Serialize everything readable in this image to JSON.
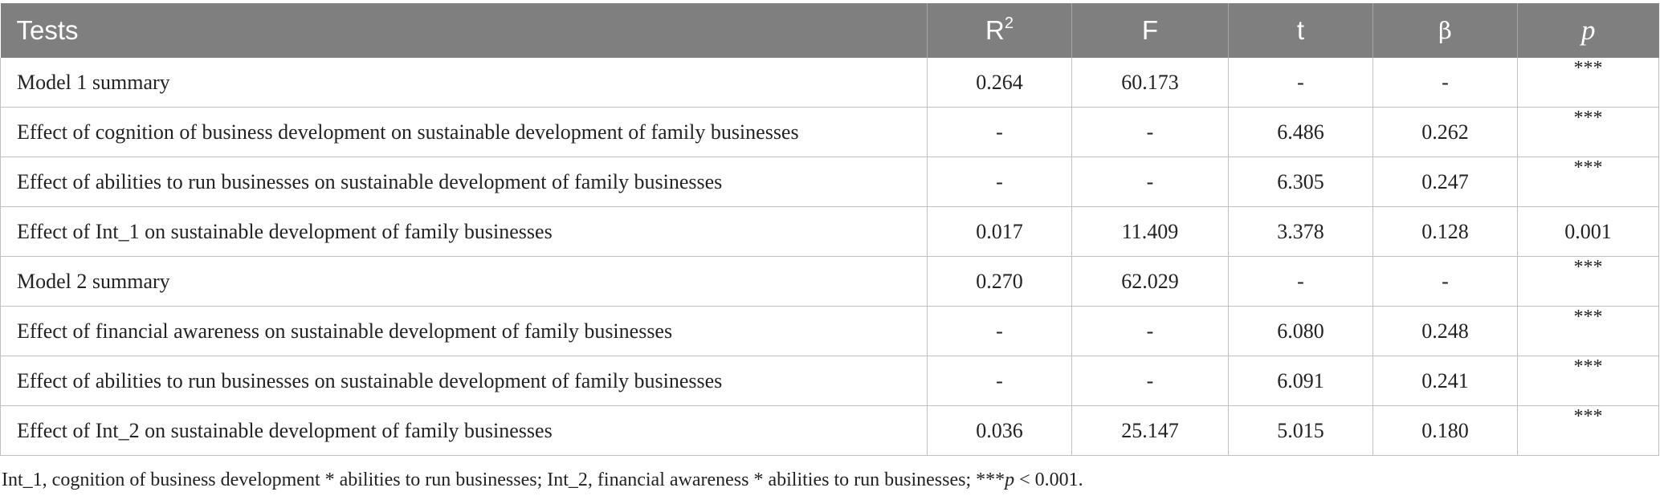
{
  "table": {
    "headers": {
      "tests": "Tests",
      "r2_base": "R",
      "r2_sup": "2",
      "f": "F",
      "t": "t",
      "beta": "β",
      "p": "p"
    },
    "rows": [
      {
        "test": "Model 1 summary",
        "r2": "0.264",
        "f": "60.173",
        "t": "-",
        "beta": "-",
        "p": "***"
      },
      {
        "test": "Effect of cognition of business development on sustainable development of family businesses",
        "r2": "-",
        "f": "-",
        "t": "6.486",
        "beta": "0.262",
        "p": "***"
      },
      {
        "test": "Effect of abilities to run businesses on sustainable development of family businesses",
        "r2": "-",
        "f": "-",
        "t": "6.305",
        "beta": "0.247",
        "p": "***"
      },
      {
        "test": "Effect of Int_1 on sustainable development of family businesses",
        "r2": "0.017",
        "f": "11.409",
        "t": "3.378",
        "beta": "0.128",
        "p": "0.001"
      },
      {
        "test": "Model 2 summary",
        "r2": "0.270",
        "f": "62.029",
        "t": "-",
        "beta": "-",
        "p": "***"
      },
      {
        "test": "Effect of financial awareness on sustainable development of family businesses",
        "r2": "-",
        "f": "-",
        "t": "6.080",
        "beta": "0.248",
        "p": "***"
      },
      {
        "test": "Effect of abilities to run businesses on sustainable development of family businesses",
        "r2": "-",
        "f": "-",
        "t": "6.091",
        "beta": "0.241",
        "p": "***"
      },
      {
        "test": "Effect of Int_2 on sustainable development of family businesses",
        "r2": "0.036",
        "f": "25.147",
        "t": "5.015",
        "beta": "0.180",
        "p": "***"
      }
    ]
  },
  "footnote": {
    "text_before": "Int_1, cognition of business development * abilities to run businesses; Int_2, financial awareness * abilities to run businesses; ***",
    "p_symbol": "p",
    "text_after": " < 0.001."
  },
  "colors": {
    "header_bg": "#7f7f7f",
    "header_text": "#ffffff",
    "grid": "#bfbfbf",
    "body_text": "#222222"
  }
}
